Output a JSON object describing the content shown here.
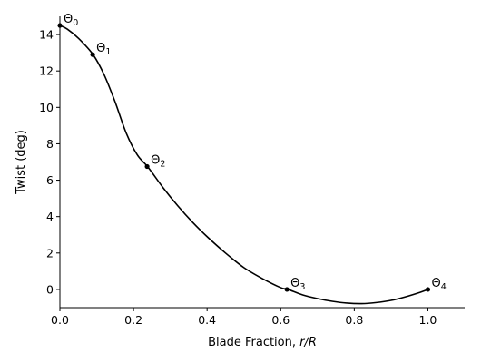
{
  "chart_data": {
    "type": "line",
    "title": "",
    "xlabel_text": "Blade Fraction, ",
    "xlabel_math": "r/R",
    "ylabel": "Twist (deg)",
    "xlim": [
      0.0,
      1.1
    ],
    "ylim": [
      -1.0,
      15.0
    ],
    "xticks": [
      0.0,
      0.2,
      0.4,
      0.6,
      0.8,
      1.0
    ],
    "xtick_labels": [
      "0.0",
      "0.2",
      "0.4",
      "0.6",
      "0.8",
      "1.0"
    ],
    "yticks": [
      0,
      2,
      4,
      6,
      8,
      10,
      12,
      14
    ],
    "ytick_labels": [
      "0",
      "2",
      "4",
      "6",
      "8",
      "10",
      "12",
      "14"
    ],
    "grid": false,
    "series": [
      {
        "x": [
          0.0,
          0.02,
          0.05,
          0.09,
          0.12,
          0.15,
          0.18,
          0.21,
          0.24,
          0.28,
          0.32,
          0.36,
          0.4,
          0.45,
          0.5,
          0.55,
          0.6,
          0.62,
          0.66,
          0.7,
          0.74,
          0.78,
          0.82,
          0.86,
          0.9,
          0.94,
          0.98,
          1.0
        ],
        "y": [
          14.5,
          14.3,
          13.8,
          12.9,
          11.8,
          10.3,
          8.6,
          7.4,
          6.7,
          5.6,
          4.6,
          3.7,
          2.9,
          2.0,
          1.2,
          0.6,
          0.1,
          0.0,
          -0.3,
          -0.5,
          -0.65,
          -0.75,
          -0.78,
          -0.72,
          -0.6,
          -0.4,
          -0.15,
          0.0
        ]
      }
    ],
    "control_points": [
      {
        "x": 0.0,
        "y": 14.5,
        "symbol": "Θ",
        "index": "0"
      },
      {
        "x": 0.089,
        "y": 12.9,
        "symbol": "Θ",
        "index": "1"
      },
      {
        "x": 0.237,
        "y": 6.75,
        "symbol": "Θ",
        "index": "2"
      },
      {
        "x": 0.617,
        "y": 0.0,
        "symbol": "Θ",
        "index": "3"
      },
      {
        "x": 1.0,
        "y": 0.0,
        "symbol": "Θ",
        "index": "4"
      }
    ]
  }
}
